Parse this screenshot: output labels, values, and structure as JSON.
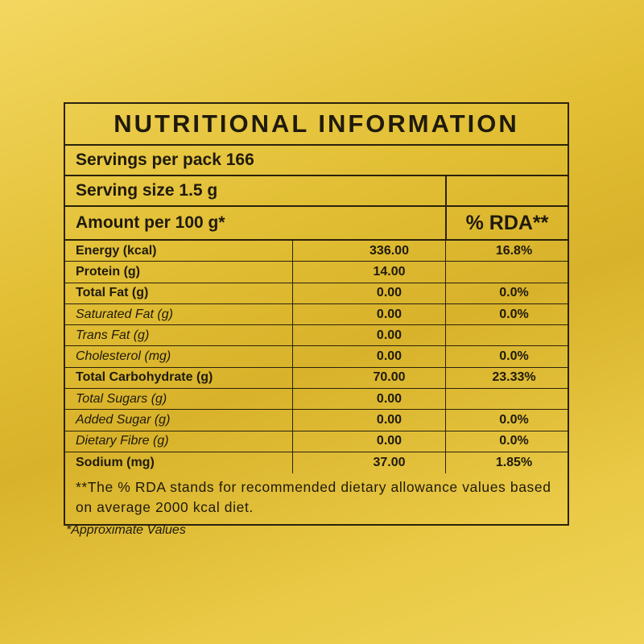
{
  "title": "NUTRITIONAL INFORMATION",
  "servings_per_pack": "Servings per pack 166",
  "serving_size": "Serving size 1.5 g",
  "amount_per": "Amount per 100 g*",
  "rda_header": "% RDA**",
  "nutrients": [
    {
      "name": "Energy (kcal)",
      "value": "336.00",
      "rda": "16.8%",
      "sub": false
    },
    {
      "name": "Protein (g)",
      "value": "14.00",
      "rda": "",
      "sub": false
    },
    {
      "name": "Total Fat (g)",
      "value": "0.00",
      "rda": "0.0%",
      "sub": false
    },
    {
      "name": "Saturated Fat (g)",
      "value": "0.00",
      "rda": "0.0%",
      "sub": true
    },
    {
      "name": "Trans Fat (g)",
      "value": "0.00",
      "rda": "",
      "sub": true
    },
    {
      "name": "Cholesterol (mg)",
      "value": "0.00",
      "rda": "0.0%",
      "sub": true
    },
    {
      "name": "Total Carbohydrate (g)",
      "value": "70.00",
      "rda": "23.33%",
      "sub": false
    },
    {
      "name": "Total Sugars (g)",
      "value": "0.00",
      "rda": "",
      "sub": true
    },
    {
      "name": "Added  Sugar (g)",
      "value": "0.00",
      "rda": "0.0%",
      "sub": true
    },
    {
      "name": "Dietary Fibre (g)",
      "value": "0.00",
      "rda": "0.0%",
      "sub": true
    },
    {
      "name": "Sodium (mg)",
      "value": "37.00",
      "rda": "1.85%",
      "sub": false
    }
  ],
  "footnote": "**The % RDA stands for recommended dietary allowance values based on average 2000 kcal diet.",
  "approx_note": "*Approximate Values"
}
